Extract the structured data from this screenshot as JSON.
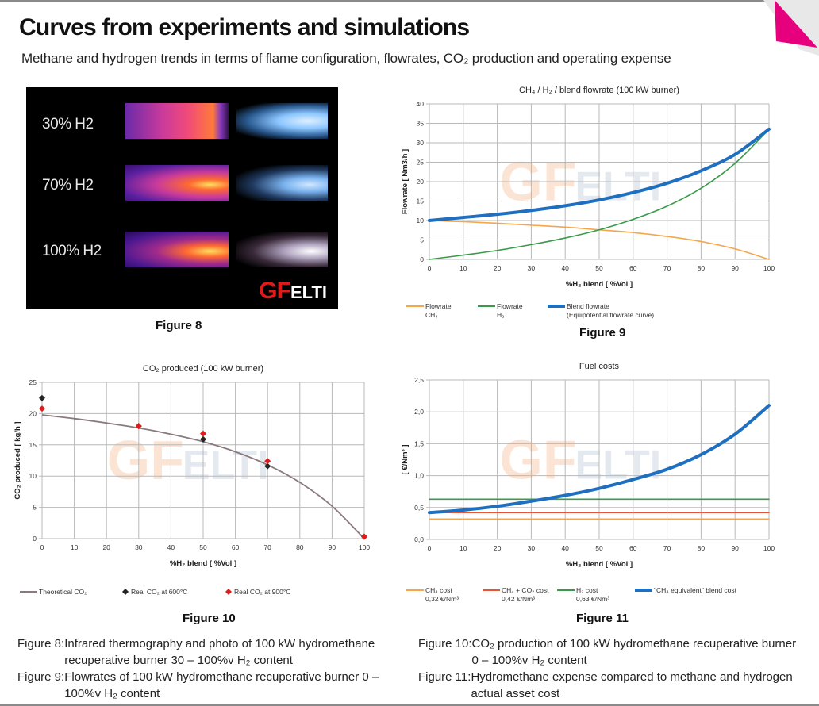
{
  "header": {
    "title": "Curves from experiments and simulations",
    "subtitle": "Methane and hydrogen trends in terms of flame configuration, flowrates, CO₂ production and operating expense"
  },
  "colors": {
    "accent_pink": "#e6007e",
    "ch4": "#f5a64a",
    "h2": "#3a9a4a",
    "blend": "#1f6fc0",
    "co2_cost": "#e8543a",
    "theoretical": "#8a7a80",
    "real600": "#222222",
    "real900": "#e11b1b"
  },
  "figure8": {
    "labels": [
      "30% H2",
      "70% H2",
      "100% H2"
    ],
    "logo_gf": "GF",
    "logo_elti": "ELTI",
    "caption": "Figure 8"
  },
  "figure9": {
    "caption": "Figure 9"
  },
  "figure10": {
    "caption": "Figure 10"
  },
  "figure11": {
    "caption": "Figure 11"
  },
  "captions": [
    {
      "key": "Figure 8:",
      "text": "Infrared thermography and photo of 100 kW hydromethane recuperative burner 30 – 100%v H₂ content"
    },
    {
      "key": "Figure 9:",
      "text": "Flowrates of 100 kW hydromethane recuperative burner 0 – 100%v H₂ content"
    },
    {
      "key": "Figure 10:",
      "text": "CO₂ production of 100 kW hydromethane recuperative burner 0 – 100%v H₂ content"
    },
    {
      "key": "Figure 11:",
      "text": "Hydromethane expense compared to methane and hydrogen actual asset cost"
    }
  ],
  "watermark": {
    "gf": "GF",
    "elti": "ELTI"
  },
  "chart_data": [
    {
      "id": "fig9",
      "type": "line",
      "title": "CH₄ / H₂ / blend flowrate   (100 kW burner)",
      "xlabel": "%H₂ blend  [ %Vol ]",
      "ylabel": "Flowrate  [ Nm3/h ]",
      "xlim": [
        0,
        100
      ],
      "ylim": [
        0,
        40
      ],
      "xticks": [
        0,
        10,
        20,
        30,
        40,
        50,
        60,
        70,
        80,
        90,
        100
      ],
      "yticks": [
        0,
        5,
        10,
        15,
        20,
        25,
        30,
        35,
        40
      ],
      "grid": true,
      "legend": "bottom",
      "x": [
        0,
        10,
        20,
        30,
        40,
        50,
        60,
        70,
        80,
        90,
        100
      ],
      "series": [
        {
          "name": "Flowrate CH₄",
          "legend_lines": [
            "Flowrate",
            "CH₄"
          ],
          "color": "#f5a64a",
          "width": "thin",
          "values": [
            10,
            9.7,
            9.3,
            8.8,
            8.3,
            7.6,
            6.9,
            5.9,
            4.6,
            2.7,
            0
          ]
        },
        {
          "name": "Flowrate H₂",
          "legend_lines": [
            "Flowrate",
            "H₂"
          ],
          "color": "#3a9a4a",
          "width": "thin",
          "values": [
            0,
            1.1,
            2.3,
            3.8,
            5.5,
            7.6,
            10.3,
            13.7,
            18.3,
            24.7,
            33.5
          ]
        },
        {
          "name": "Blend flowrate (Equipotential flowrate curve)",
          "legend_lines": [
            "Blend flowrate",
            "(Equipotential flowrate curve)"
          ],
          "color": "#1f6fc0",
          "width": "thick",
          "values": [
            10,
            10.8,
            11.6,
            12.6,
            13.8,
            15.3,
            17.2,
            19.6,
            22.8,
            27,
            33.5
          ]
        }
      ]
    },
    {
      "id": "fig10",
      "type": "scatter",
      "title": "CO₂ produced   (100 kW burner)",
      "xlabel": "%H₂ blend  [ %Vol ]",
      "ylabel": "CO₂ produced  [ kg/h ]",
      "xlim": [
        0,
        100
      ],
      "ylim": [
        0,
        25
      ],
      "xticks": [
        0,
        10,
        20,
        30,
        40,
        50,
        60,
        70,
        80,
        90,
        100
      ],
      "yticks": [
        0,
        5,
        10,
        15,
        20,
        25
      ],
      "grid": true,
      "legend": "bottom",
      "series": [
        {
          "name": "Theoretical CO₂",
          "kind": "line",
          "color": "#8a7a80",
          "x": [
            0,
            10,
            20,
            30,
            40,
            50,
            60,
            70,
            80,
            90,
            100
          ],
          "values": [
            19.8,
            19.2,
            18.5,
            17.7,
            16.7,
            15.5,
            13.9,
            11.8,
            9.0,
            5.2,
            0
          ]
        },
        {
          "name": "Real CO₂ at 600°C",
          "kind": "marker",
          "marker": "diamond",
          "color": "#222222",
          "x": [
            0,
            30,
            50,
            70,
            100
          ],
          "values": [
            22.5,
            18,
            15.9,
            11.6,
            0.3
          ]
        },
        {
          "name": "Real CO₂ at 900°C",
          "kind": "marker",
          "marker": "diamond",
          "color": "#e11b1b",
          "x": [
            0,
            30,
            50,
            70,
            100
          ],
          "values": [
            20.8,
            18,
            16.8,
            12.4,
            0.3
          ]
        }
      ]
    },
    {
      "id": "fig11",
      "type": "line",
      "title": "Fuel costs",
      "xlabel": "%H₂ blend  [ %Vol ]",
      "ylabel": "[ €/Nm³ ]",
      "xlim": [
        0,
        100
      ],
      "ylim": [
        0,
        2.5
      ],
      "xticks": [
        0,
        10,
        20,
        30,
        40,
        50,
        60,
        70,
        80,
        90,
        100
      ],
      "yticks": [
        "0,0",
        "0,5",
        "1,0",
        "1,5",
        "2,0",
        "2,5"
      ],
      "ytick_values": [
        0,
        0.5,
        1,
        1.5,
        2,
        2.5
      ],
      "grid": true,
      "legend": "bottom",
      "x": [
        0,
        10,
        20,
        30,
        40,
        50,
        60,
        70,
        80,
        90,
        100
      ],
      "series": [
        {
          "name": "CH₄ cost",
          "legend_lines": [
            "CH₄ cost",
            "0,32 €/Nm³"
          ],
          "color": "#f5a64a",
          "width": "thin",
          "values": [
            0.32,
            0.32,
            0.32,
            0.32,
            0.32,
            0.32,
            0.32,
            0.32,
            0.32,
            0.32,
            0.32
          ]
        },
        {
          "name": "CH₄ + CO₂ cost",
          "legend_lines": [
            "CH₄ + CO₂ cost",
            "0,42 €/Nm³"
          ],
          "color": "#e8543a",
          "width": "thin",
          "values": [
            0.42,
            0.42,
            0.42,
            0.42,
            0.42,
            0.42,
            0.42,
            0.42,
            0.42,
            0.42,
            0.42
          ]
        },
        {
          "name": "H₂ cost",
          "legend_lines": [
            "H₂ cost",
            "0,63 €/Nm³"
          ],
          "color": "#3a9a4a",
          "width": "thin",
          "values": [
            0.63,
            0.63,
            0.63,
            0.63,
            0.63,
            0.63,
            0.63,
            0.63,
            0.63,
            0.63,
            0.63
          ]
        },
        {
          "name": "\"CH₄ equivalent\" blend cost",
          "legend_lines": [
            "\"CH₄ equivalent\" blend cost"
          ],
          "color": "#1f6fc0",
          "width": "thick",
          "values": [
            0.42,
            0.46,
            0.52,
            0.6,
            0.69,
            0.8,
            0.94,
            1.1,
            1.33,
            1.65,
            2.1
          ]
        }
      ]
    }
  ]
}
